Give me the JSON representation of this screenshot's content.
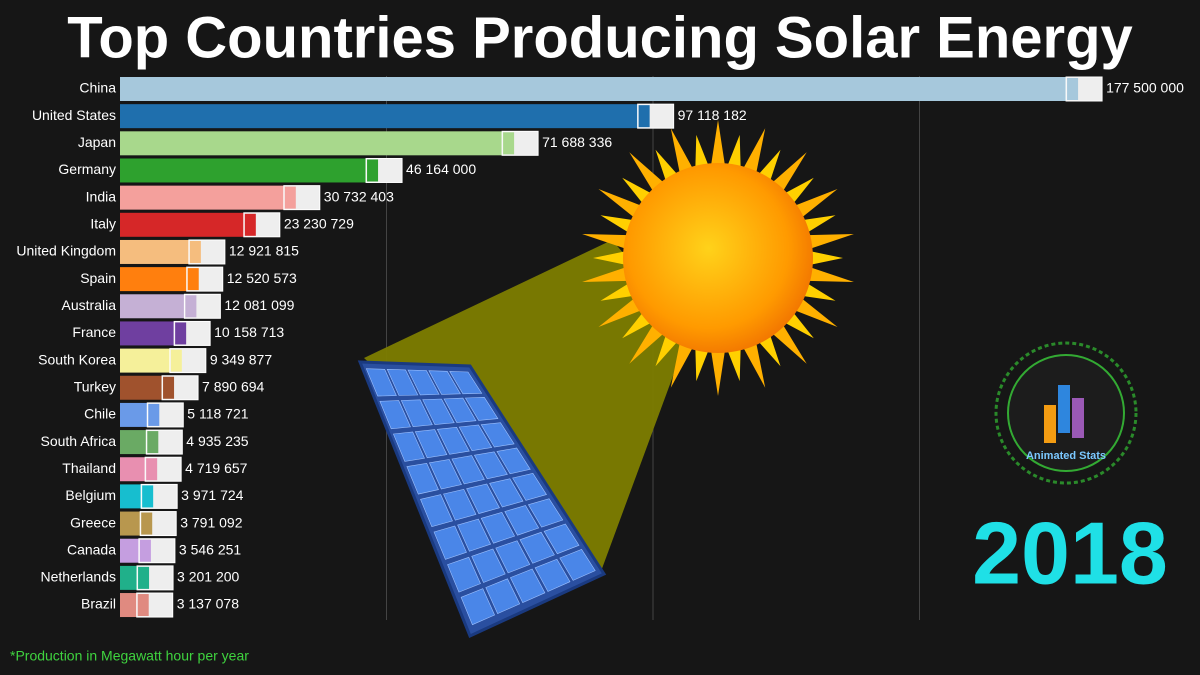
{
  "chart_data": {
    "type": "bar",
    "orientation": "horizontal",
    "title": "Top Countries Producing Solar Energy",
    "footnote": "*Production in Megawatt hour per year",
    "year": "2018",
    "logo_text": "Animated Stats",
    "categories": [
      "China",
      "United States",
      "Japan",
      "Germany",
      "India",
      "Italy",
      "United Kingdom",
      "Spain",
      "Australia",
      "France",
      "South Korea",
      "Turkey",
      "Chile",
      "South Africa",
      "Thailand",
      "Belgium",
      "Greece",
      "Canada",
      "Netherlands",
      "Brazil"
    ],
    "values": [
      177500000,
      97118182,
      71688336,
      46164000,
      30732403,
      23230729,
      12921815,
      12520573,
      12081099,
      10158713,
      9349877,
      7890694,
      5118721,
      4935235,
      4719657,
      3971724,
      3791092,
      3546251,
      3201200,
      3137078
    ],
    "value_labels": [
      "177 500 000",
      "97 118 182",
      "71 688 336",
      "46 164 000",
      "30 732 403",
      "23 230 729",
      "12 921 815",
      "12 520 573",
      "12 081 099",
      "10 158 713",
      "9 349 877",
      "7 890 694",
      "5 118 721",
      "4 935 235",
      "4 719 657",
      "3 971 724",
      "3 791 092",
      "3 546 251",
      "3 201 200",
      "3 137 078"
    ],
    "colors": [
      "#a6c8dc",
      "#1f6fad",
      "#a8d88c",
      "#2ea12e",
      "#f4a09c",
      "#d62728",
      "#f5bd7e",
      "#ff7f0e",
      "#c5b0d5",
      "#6f3fa0",
      "#f5f09a",
      "#a0522d",
      "#6a9ae8",
      "#6aaa64",
      "#e88fb0",
      "#17becf",
      "#b8974e",
      "#c59ee0",
      "#20b08a",
      "#e08a80"
    ],
    "xlim": [
      0,
      200000000
    ],
    "xgrid": [
      50000000,
      100000000,
      150000000
    ],
    "grid": true
  }
}
